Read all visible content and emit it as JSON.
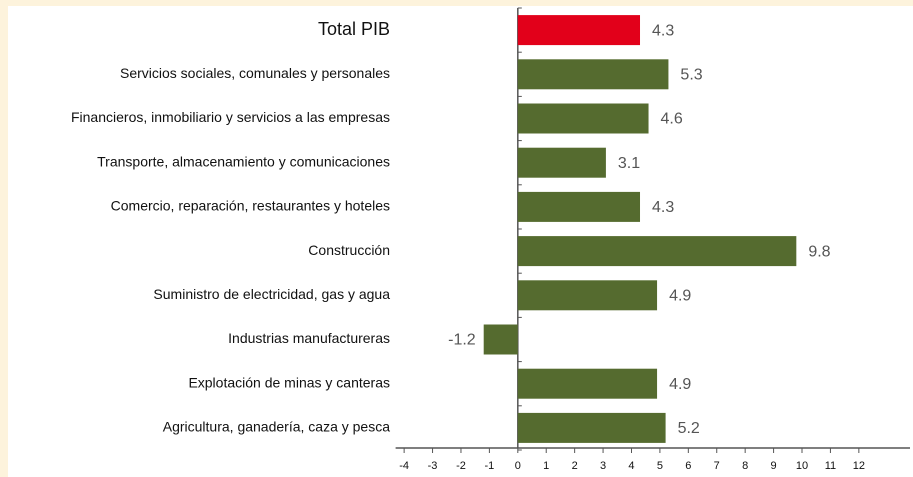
{
  "chart_data": {
    "type": "barh",
    "categories": [
      "Total PIB",
      "Servicios sociales, comunales y personales",
      "Financieros,  inmobiliario y servicios a las empresas",
      "Transporte, almacenamiento y comunicaciones",
      "Comercio, reparación, restaurantes y hoteles",
      "Construcción",
      "Suministro de electricidad, gas y agua",
      "Industrias manufactureras",
      "Explotación de minas y canteras",
      "Agricultura, ganadería, caza y pesca"
    ],
    "values": [
      4.3,
      5.3,
      4.6,
      3.1,
      4.3,
      9.8,
      4.9,
      -1.2,
      4.9,
      5.2
    ],
    "colors": [
      "#e2001a",
      "#556b2f",
      "#556b2f",
      "#556b2f",
      "#556b2f",
      "#556b2f",
      "#556b2f",
      "#556b2f",
      "#556b2f",
      "#556b2f"
    ],
    "xlim": [
      -4.3,
      13.8
    ],
    "xticks": [
      -4,
      -3,
      -2,
      -1,
      0,
      1,
      2,
      3,
      4,
      5,
      6,
      7,
      8,
      9,
      10,
      11,
      12
    ]
  }
}
